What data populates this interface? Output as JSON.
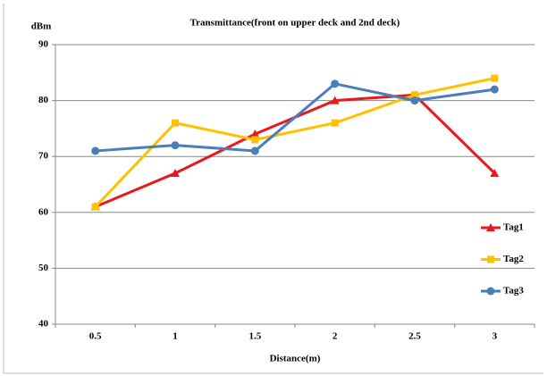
{
  "chart_data": {
    "type": "line",
    "title": "Transmittance(front on upper deck and 2nd deck)",
    "y_label": "dBm",
    "x_label": "Distance(m)",
    "categories": [
      "0.5",
      "1",
      "1.5",
      "2",
      "2.5",
      "3"
    ],
    "series": [
      {
        "name": "Tag1",
        "color": "#e8191c",
        "marker": "triangle",
        "values": [
          61,
          67,
          74,
          80,
          81,
          67
        ]
      },
      {
        "name": "Tag2",
        "color": "#ffc000",
        "marker": "square",
        "values": [
          61,
          76,
          73,
          76,
          81,
          84
        ]
      },
      {
        "name": "Tag3",
        "color": "#4a7ebb",
        "marker": "circle",
        "values": [
          71,
          72,
          71,
          83,
          80,
          82
        ]
      }
    ],
    "ylim": [
      40,
      90
    ],
    "yticks": [
      40,
      50,
      60,
      70,
      80,
      90
    ],
    "grid": true,
    "legend": "right"
  }
}
